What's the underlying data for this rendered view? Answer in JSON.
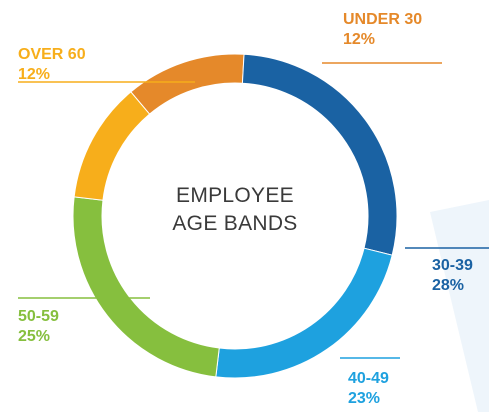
{
  "chart_data": {
    "type": "pie",
    "variant": "donut",
    "title": [
      "EMPLOYEE",
      "AGE BANDS"
    ],
    "slices": [
      {
        "label": "UNDER 30",
        "value": 12,
        "display": "12%",
        "color": "#E5892A"
      },
      {
        "label": "30-39",
        "value": 28,
        "display": "28%",
        "color": "#1A62A3"
      },
      {
        "label": "40-49",
        "value": 23,
        "display": "23%",
        "color": "#1EA1DF"
      },
      {
        "label": "50-59",
        "value": 25,
        "display": "25%",
        "color": "#86BF3E"
      },
      {
        "label": "OVER 60",
        "value": 12,
        "display": "12%",
        "color": "#F7AE1B"
      }
    ]
  }
}
